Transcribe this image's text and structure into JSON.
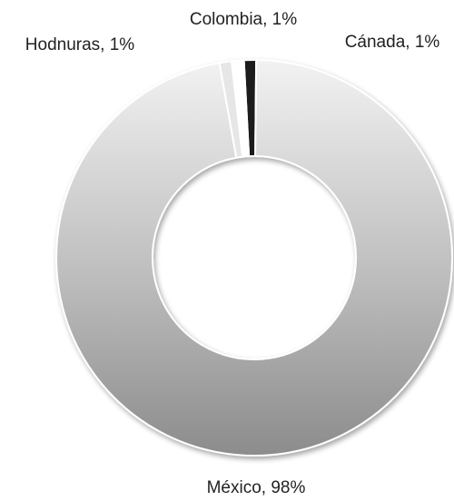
{
  "chart_data": {
    "type": "donut",
    "value_labels": [
      "Cánada, 1%",
      "México, 98%",
      "Hodnuras, 1%",
      "Colombia, 1%"
    ],
    "values": [
      1,
      98,
      1,
      1
    ],
    "colors": [
      "#1a1a1a",
      "#bdbdbd",
      "#e6e6e6",
      "#ffffff"
    ]
  }
}
